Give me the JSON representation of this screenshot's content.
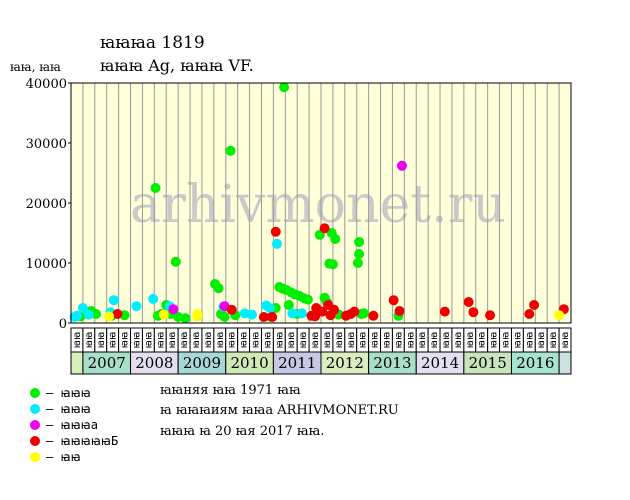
{
  "header": {
    "title_line1": "ꙗꙗꙗа 1819",
    "title_line2": "ꙗꙗꙗ Ag, ꙗꙗꙗ VF.",
    "units_label": "ꙗꙗ, ꙗꙗ"
  },
  "watermark": "arhivmonet.ru",
  "notes": {
    "line1": "ꙗꙗняя ꙗꙗ 1971 ꙗꙗ",
    "line2": "ꙗ ꙗꙗꙗиям ꙗꙗа ARHIVMONET.RU",
    "line3": "ꙗꙗꙗ ꙗ 20 ꙗя 2017 ꙗꙗ."
  },
  "legend": [
    {
      "label": "– ꙗꙗꙗ",
      "color": "#00ee00"
    },
    {
      "label": "– ꙗꙗꙗ",
      "color": "#00eeff"
    },
    {
      "label": "– ꙗꙗꙗа",
      "color": "#ee00ee"
    },
    {
      "label": "– ꙗꙗꙗꙗꙗБ",
      "color": "#ee0000"
    },
    {
      "label": "– ꙗꙗ",
      "color": "#ffff00"
    }
  ],
  "chart_data": {
    "type": "scatter",
    "ylim": [
      0,
      40000
    ],
    "y_ticks": [
      0,
      10000,
      20000,
      30000,
      40000
    ],
    "quarter_labels": [
      "ꙗꙗ",
      "ꙗꙗ",
      "ꙗꙗ",
      "ꙗꙗ"
    ],
    "years": [
      {
        "label": "",
        "color": "#d8eebc",
        "quarters": 1
      },
      {
        "label": "2007",
        "color": "#a9dfc8",
        "quarters": 4
      },
      {
        "label": "2008",
        "color": "#e3def0",
        "quarters": 4
      },
      {
        "label": "2009",
        "color": "#a8d7d8",
        "quarters": 4
      },
      {
        "label": "2010",
        "color": "#cfe9b5",
        "quarters": 4
      },
      {
        "label": "2011",
        "color": "#c7c8e6",
        "quarters": 4
      },
      {
        "label": "2012",
        "color": "#dbeebf",
        "quarters": 4
      },
      {
        "label": "2013",
        "color": "#a9dfc8",
        "quarters": 4
      },
      {
        "label": "2014",
        "color": "#e3def0",
        "quarters": 4
      },
      {
        "label": "2015",
        "color": "#c8e4bd",
        "quarters": 4
      },
      {
        "label": "2016",
        "color": "#a8e3d0",
        "quarters": 4
      },
      {
        "label": "",
        "color": "#cbe0e0",
        "quarters": 1
      }
    ],
    "series": [
      {
        "key": "green",
        "color": "#00ee00",
        "points": [
          [
            0.8,
            1100
          ],
          [
            1.1,
            1600
          ],
          [
            1.7,
            2000
          ],
          [
            2.1,
            1500
          ],
          [
            3.4,
            1200
          ],
          [
            4.5,
            1300
          ],
          [
            7.1,
            22500
          ],
          [
            7.3,
            1200
          ],
          [
            7.6,
            1500
          ],
          [
            8.0,
            3000
          ],
          [
            8.4,
            1500
          ],
          [
            8.8,
            10200
          ],
          [
            9.0,
            1000
          ],
          [
            9.6,
            800
          ],
          [
            12.1,
            6500
          ],
          [
            12.4,
            5800
          ],
          [
            12.6,
            1500
          ],
          [
            12.9,
            1000
          ],
          [
            13.4,
            28700
          ],
          [
            13.8,
            1300
          ],
          [
            16.8,
            1000
          ],
          [
            17.2,
            2500
          ],
          [
            17.5,
            6000
          ],
          [
            17.8,
            5700
          ],
          [
            17.9,
            39300
          ],
          [
            18.1,
            5500
          ],
          [
            18.3,
            3000
          ],
          [
            18.5,
            5100
          ],
          [
            18.8,
            4800
          ],
          [
            19.0,
            1500
          ],
          [
            19.2,
            4500
          ],
          [
            19.6,
            4100
          ],
          [
            19.9,
            3900
          ],
          [
            20.9,
            14700
          ],
          [
            21.3,
            4200
          ],
          [
            21.5,
            3500
          ],
          [
            21.7,
            9900
          ],
          [
            21.9,
            15000
          ],
          [
            22.0,
            9800
          ],
          [
            22.2,
            14000
          ],
          [
            22.5,
            1400
          ],
          [
            24.1,
            10000
          ],
          [
            24.2,
            11500
          ],
          [
            24.2,
            13500
          ],
          [
            24.4,
            1500
          ],
          [
            24.6,
            1600
          ],
          [
            27.5,
            1200
          ]
        ]
      },
      {
        "key": "cyan",
        "color": "#00eeff",
        "points": [
          [
            0.3,
            1000
          ],
          [
            0.5,
            1200
          ],
          [
            1.0,
            2500
          ],
          [
            1.5,
            1400
          ],
          [
            3.3,
            1800
          ],
          [
            3.6,
            3800
          ],
          [
            5.5,
            2800
          ],
          [
            6.9,
            4000
          ],
          [
            8.3,
            2800
          ],
          [
            12.8,
            2700
          ],
          [
            14.6,
            1600
          ],
          [
            15.2,
            1400
          ],
          [
            16.4,
            2900
          ],
          [
            16.7,
            2500
          ],
          [
            17.3,
            13200
          ],
          [
            18.6,
            1600
          ],
          [
            19.4,
            1600
          ]
        ]
      },
      {
        "key": "magenta",
        "color": "#ee00ee",
        "points": [
          [
            8.6,
            2300
          ],
          [
            12.9,
            2800
          ],
          [
            27.8,
            26200
          ]
        ]
      },
      {
        "key": "red",
        "color": "#ee0000",
        "points": [
          [
            3.9,
            1500
          ],
          [
            13.5,
            2200
          ],
          [
            16.2,
            1000
          ],
          [
            16.9,
            1000
          ],
          [
            17.2,
            15200
          ],
          [
            20.2,
            1200
          ],
          [
            20.5,
            1100
          ],
          [
            20.6,
            2500
          ],
          [
            20.8,
            2000
          ],
          [
            21.1,
            1900
          ],
          [
            21.3,
            15800
          ],
          [
            21.6,
            3000
          ],
          [
            21.8,
            1300
          ],
          [
            22.1,
            2200
          ],
          [
            23.1,
            1200
          ],
          [
            23.5,
            1500
          ],
          [
            23.8,
            1900
          ],
          [
            25.4,
            1200
          ],
          [
            27.1,
            3800
          ],
          [
            27.6,
            2000
          ],
          [
            31.4,
            1900
          ],
          [
            33.4,
            3500
          ],
          [
            33.8,
            1800
          ],
          [
            35.2,
            1300
          ],
          [
            38.5,
            1500
          ],
          [
            38.9,
            3000
          ],
          [
            41.4,
            2300
          ]
        ]
      },
      {
        "key": "yellow",
        "color": "#ffff00",
        "points": [
          [
            3.2,
            1100
          ],
          [
            7.8,
            1400
          ],
          [
            10.6,
            1500
          ],
          [
            10.6,
            1100
          ],
          [
            41.0,
            1300
          ]
        ]
      }
    ]
  }
}
